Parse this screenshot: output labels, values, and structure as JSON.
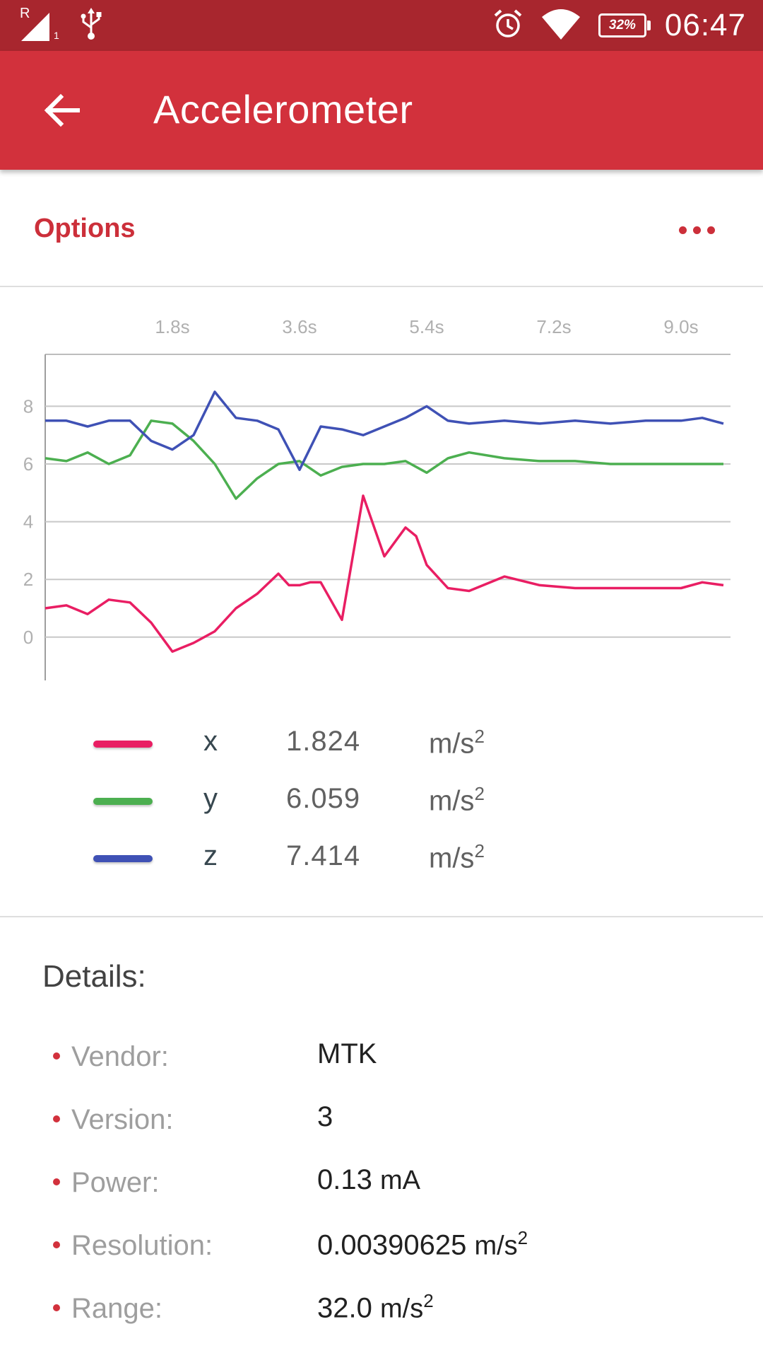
{
  "status_bar": {
    "time": "06:47",
    "battery": "32%",
    "network_label": "R",
    "sim_slot": "1",
    "icons": [
      "signal-icon",
      "usb-icon",
      "alarm-icon",
      "wifi-icon",
      "battery-icon"
    ]
  },
  "app_bar": {
    "title": "Accelerometer",
    "back_icon": "arrow-left-icon"
  },
  "options": {
    "label": "Options",
    "more_icon": "more-horizontal-icon"
  },
  "colors": {
    "x": "#e91e63",
    "y": "#4caf50",
    "z": "#3f51b5",
    "accent": "#d2313c",
    "status_bar": "#a8262e"
  },
  "chart_data": {
    "type": "line",
    "x_ticks": [
      "1.8s",
      "3.6s",
      "5.4s",
      "7.2s",
      "9.0s"
    ],
    "x_tick_values": [
      1.8,
      3.6,
      5.4,
      7.2,
      9.0
    ],
    "y_ticks": [
      "0",
      "2",
      "4",
      "6",
      "8"
    ],
    "y_tick_values": [
      0,
      2,
      4,
      6,
      8
    ],
    "xlim": [
      0,
      9.7
    ],
    "ylim": [
      -1.5,
      9.8
    ],
    "grid": true,
    "series": [
      {
        "name": "x",
        "color": "#e91e63",
        "x": [
          0,
          0.3,
          0.6,
          0.9,
          1.2,
          1.5,
          1.8,
          2.1,
          2.4,
          2.7,
          3.0,
          3.3,
          3.45,
          3.6,
          3.75,
          3.9,
          4.2,
          4.5,
          4.8,
          5.1,
          5.25,
          5.4,
          5.7,
          6.0,
          6.5,
          7.0,
          7.5,
          8.0,
          8.5,
          9.0,
          9.3,
          9.6
        ],
        "y": [
          1.0,
          1.1,
          0.8,
          1.3,
          1.2,
          0.5,
          -0.5,
          -0.2,
          0.2,
          1.0,
          1.5,
          2.2,
          1.8,
          1.8,
          1.9,
          1.9,
          0.6,
          4.9,
          2.8,
          3.8,
          3.5,
          2.5,
          1.7,
          1.6,
          2.1,
          1.8,
          1.7,
          1.7,
          1.7,
          1.7,
          1.9,
          1.8
        ]
      },
      {
        "name": "y",
        "color": "#4caf50",
        "x": [
          0,
          0.3,
          0.6,
          0.9,
          1.2,
          1.5,
          1.8,
          2.1,
          2.4,
          2.7,
          3.0,
          3.3,
          3.6,
          3.9,
          4.2,
          4.5,
          4.8,
          5.1,
          5.4,
          5.7,
          6.0,
          6.5,
          7.0,
          7.5,
          8.0,
          8.5,
          9.0,
          9.3,
          9.6
        ],
        "y": [
          6.2,
          6.1,
          6.4,
          6.0,
          6.3,
          7.5,
          7.4,
          6.8,
          6.0,
          4.8,
          5.5,
          6.0,
          6.1,
          5.6,
          5.9,
          6.0,
          6.0,
          6.1,
          5.7,
          6.2,
          6.4,
          6.2,
          6.1,
          6.1,
          6.0,
          6.0,
          6.0,
          6.0,
          6.0
        ]
      },
      {
        "name": "z",
        "color": "#3f51b5",
        "x": [
          0,
          0.3,
          0.6,
          0.9,
          1.2,
          1.5,
          1.8,
          2.1,
          2.4,
          2.7,
          3.0,
          3.3,
          3.6,
          3.9,
          4.2,
          4.5,
          4.8,
          5.1,
          5.4,
          5.7,
          6.0,
          6.5,
          7.0,
          7.5,
          8.0,
          8.5,
          9.0,
          9.3,
          9.6
        ],
        "y": [
          7.5,
          7.5,
          7.3,
          7.5,
          7.5,
          6.8,
          6.5,
          7.0,
          8.5,
          7.6,
          7.5,
          7.2,
          5.8,
          7.3,
          7.2,
          7.0,
          7.3,
          7.6,
          8.0,
          7.5,
          7.4,
          7.5,
          7.4,
          7.5,
          7.4,
          7.5,
          7.5,
          7.6,
          7.4
        ]
      }
    ]
  },
  "legend": [
    {
      "axis": "x",
      "value": "1.824",
      "unit": "m/s",
      "exp": "2"
    },
    {
      "axis": "y",
      "value": "6.059",
      "unit": "m/s",
      "exp": "2"
    },
    {
      "axis": "z",
      "value": "7.414",
      "unit": "m/s",
      "exp": "2"
    }
  ],
  "details": {
    "title": "Details:",
    "items": [
      {
        "label": "Vendor:",
        "value": "MTK",
        "unit": "",
        "exp": ""
      },
      {
        "label": "Version:",
        "value": "3",
        "unit": "",
        "exp": ""
      },
      {
        "label": "Power:",
        "value": "0.13",
        "unit": "mA",
        "exp": ""
      },
      {
        "label": "Resolution:",
        "value": "0.00390625",
        "unit": "m/s",
        "exp": "2"
      },
      {
        "label": "Range:",
        "value": "32.0",
        "unit": "m/s",
        "exp": "2"
      }
    ]
  }
}
